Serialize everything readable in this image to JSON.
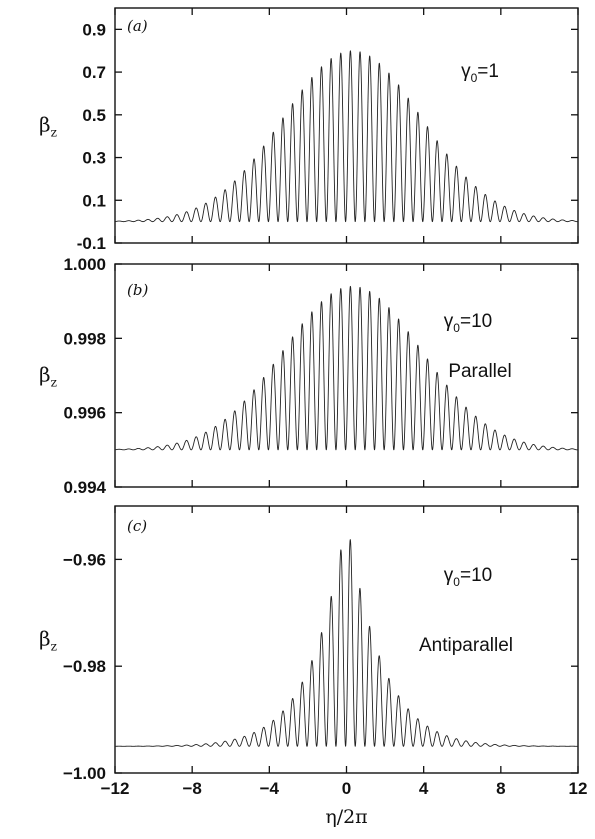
{
  "chart_data": [
    {
      "type": "line",
      "panel_label": "(a)",
      "ylabel": "β",
      "ylabel_sub": "z",
      "xlabel": "",
      "annotations": [
        {
          "prefix": "γ",
          "sub": "0",
          "suffix": "=1"
        }
      ],
      "xlim": [
        -12,
        12
      ],
      "ylim": [
        -0.1,
        1.0
      ],
      "yticks": [
        -0.1,
        0.1,
        0.3,
        0.5,
        0.7,
        0.9
      ],
      "ytick_labels": [
        "-0.1",
        "0.1",
        "0.3",
        "0.5",
        "0.7",
        "0.9"
      ],
      "xticks": [
        -12,
        -8,
        -4,
        0,
        4,
        8,
        12
      ],
      "xtick_labels": [],
      "series": [
        {
          "baseline": 0.0,
          "envelope_peak": 0.8,
          "envelope_width": 3.6,
          "peak_center": 0.3,
          "oscillation_period": 0.5,
          "shape": "gaussian"
        }
      ]
    },
    {
      "type": "line",
      "panel_label": "(b)",
      "ylabel": "β",
      "ylabel_sub": "z",
      "xlabel": "",
      "annotations": [
        {
          "prefix": "γ",
          "sub": "0",
          "suffix": "=10"
        },
        {
          "prefix": "Parallel",
          "sub": "",
          "suffix": ""
        }
      ],
      "xlim": [
        -12,
        12
      ],
      "ylim": [
        0.994,
        1.0
      ],
      "yticks": [
        0.994,
        0.996,
        0.998,
        1.0
      ],
      "ytick_labels": [
        "0.994",
        "0.996",
        "0.998",
        "1.000"
      ],
      "xticks": [
        -12,
        -8,
        -4,
        0,
        4,
        8,
        12
      ],
      "xtick_labels": [],
      "series": [
        {
          "baseline": 0.995,
          "envelope_peak": 0.9994,
          "envelope_width": 3.6,
          "peak_center": 0.3,
          "oscillation_period": 0.5,
          "shape": "gaussian"
        }
      ]
    },
    {
      "type": "line",
      "panel_label": "(c)",
      "ylabel": "β",
      "ylabel_sub": "z",
      "xlabel": "η/2π",
      "annotations": [
        {
          "prefix": "γ",
          "sub": "0",
          "suffix": "=10"
        },
        {
          "prefix": "Antiparallel",
          "sub": "",
          "suffix": ""
        }
      ],
      "xlim": [
        -12,
        12
      ],
      "ylim": [
        -1.0,
        -0.95
      ],
      "yticks": [
        -1.0,
        -0.98,
        -0.96
      ],
      "ytick_labels": [
        "−1.00",
        "−0.98",
        "−0.96"
      ],
      "xticks": [
        -12,
        -8,
        -4,
        0,
        4,
        8,
        12
      ],
      "xtick_labels": [
        "−12",
        "−8",
        "−4",
        "0",
        "4",
        "8",
        "12"
      ],
      "series": [
        {
          "baseline": -0.995,
          "envelope_peak": -0.952,
          "envelope_width": 1.9,
          "peak_center": 0.0,
          "oscillation_period": 0.5,
          "shape": "cusp"
        }
      ]
    }
  ]
}
